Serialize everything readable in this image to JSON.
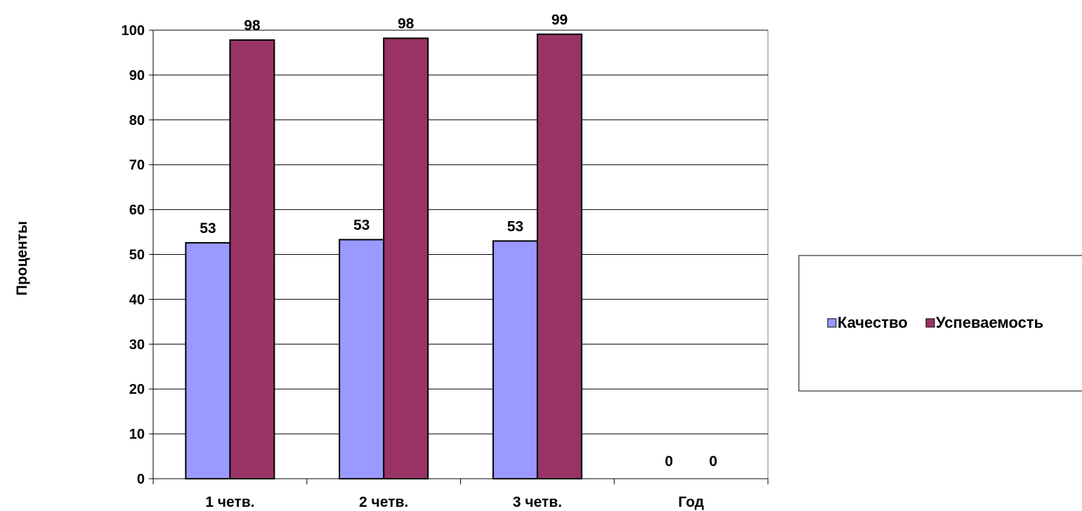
{
  "chart_data": {
    "type": "bar",
    "title": "",
    "xlabel": "",
    "ylabel": "Проценты",
    "ylim": [
      0,
      100
    ],
    "yticks": [
      0,
      10,
      20,
      30,
      40,
      50,
      60,
      70,
      80,
      90,
      100
    ],
    "categories": [
      "1 четв.",
      "2 четв.",
      "3 четв.",
      "Год"
    ],
    "series": [
      {
        "name": "Качество",
        "color": "#9999ff",
        "values": [
          52.6,
          53.3,
          53.0,
          0
        ],
        "labels": [
          "53",
          "53",
          "53",
          "0"
        ]
      },
      {
        "name": "Успеваемость",
        "color": "#993366",
        "values": [
          97.8,
          98.2,
          99.1,
          0
        ],
        "labels": [
          "98",
          "98",
          "99",
          "0"
        ]
      }
    ],
    "grid": true,
    "legend_position": "right"
  }
}
